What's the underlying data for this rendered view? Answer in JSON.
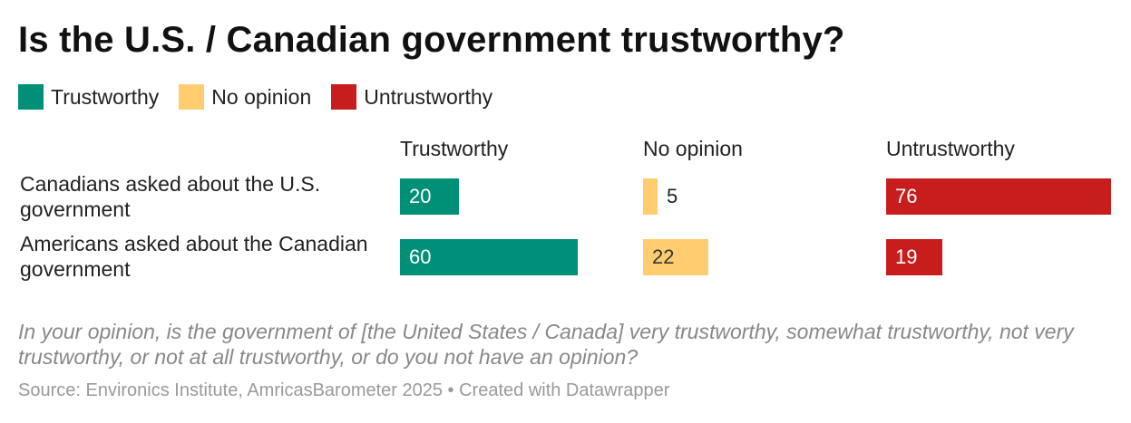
{
  "chart_data": {
    "type": "bar",
    "title": "Is the U.S. / Canadian government trustworthy?",
    "legend": [
      {
        "label": "Trustworthy",
        "color": "#008f77"
      },
      {
        "label": "No opinion",
        "color": "#ffcc70"
      },
      {
        "label": "Untrustworthy",
        "color": "#c71e1d"
      }
    ],
    "columns": [
      "Trustworthy",
      "No opinion",
      "Untrustworthy"
    ],
    "categories": [
      [
        "Canadians asked about the U.S.",
        "government"
      ],
      [
        "Americans asked about the Canadian",
        "government"
      ]
    ],
    "series": [
      {
        "name": "Trustworthy",
        "values": [
          20,
          60
        ],
        "color": "#008f77",
        "label_color": "#ffffff"
      },
      {
        "name": "No opinion",
        "values": [
          5,
          22
        ],
        "color": "#ffcc70",
        "label_color": "#333333"
      },
      {
        "name": "Untrustworthy",
        "values": [
          76,
          19
        ],
        "color": "#c71e1d",
        "label_color": "#ffffff"
      }
    ],
    "xlim": [
      0,
      76
    ]
  },
  "note": "In your opinion, is the government of [the United States / Canada] very trustworthy, somewhat trustworthy, not very trustworthy, or not at all trustworthy, or do you not have an opinion?",
  "source": "Source: Environics Institute, AmricasBarometer 2025 • Created with Datawrapper"
}
